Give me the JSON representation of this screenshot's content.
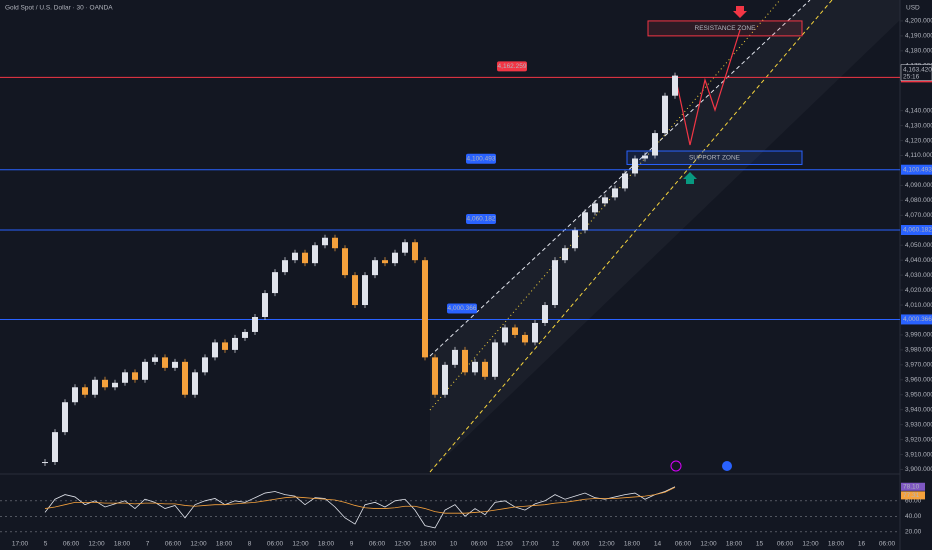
{
  "header": {
    "title": "Gold Spot / U.S. Dollar · 30 · OANDA",
    "currency": "USD"
  },
  "chart_data": {
    "type": "candlestick",
    "closes": [
      3905,
      3925,
      3945,
      3955,
      3950,
      3960,
      3955,
      3958,
      3965,
      3960,
      3972,
      3975,
      3968,
      3972,
      3950,
      3965,
      3975,
      3985,
      3980,
      3988,
      3992,
      4002,
      4018,
      4032,
      4040,
      4045,
      4038,
      4050,
      4055,
      4048,
      4030,
      4010,
      4030,
      4040,
      4038,
      4045,
      4052,
      4040,
      3975,
      3950,
      3970,
      3980,
      3965,
      3972,
      3962,
      3985,
      3995,
      3990,
      3985,
      3998,
      4010,
      4040,
      4048,
      4060,
      4072,
      4078,
      4082,
      4088,
      4098,
      4108,
      4110,
      4125,
      4150,
      4163.42
    ],
    "up_color": "#e0e3eb",
    "down_color": "#f5a13c",
    "ylim": [
      3897,
      4214
    ],
    "yticks": [
      {
        "value": 3900,
        "label": "3,900.000"
      },
      {
        "value": 3910,
        "label": "3,910.000"
      },
      {
        "value": 3920,
        "label": "3,920.000"
      },
      {
        "value": 3930,
        "label": "3,930.000"
      },
      {
        "value": 3940,
        "label": "3,940.000"
      },
      {
        "value": 3950,
        "label": "3,950.000"
      },
      {
        "value": 3960,
        "label": "3,960.000"
      },
      {
        "value": 3970,
        "label": "3,970.000"
      },
      {
        "value": 3980,
        "label": "3,980.000"
      },
      {
        "value": 3990,
        "label": "3,990.000"
      },
      {
        "value": 4010,
        "label": "4,010.000"
      },
      {
        "value": 4020,
        "label": "4,020.000"
      },
      {
        "value": 4030,
        "label": "4,030.000"
      },
      {
        "value": 4040,
        "label": "4,040.000"
      },
      {
        "value": 4050,
        "label": "4,050.000"
      },
      {
        "value": 4070,
        "label": "4,070.000"
      },
      {
        "value": 4080,
        "label": "4,080.000"
      },
      {
        "value": 4090,
        "label": "4,090.000"
      },
      {
        "value": 4110,
        "label": "4,110.000"
      },
      {
        "value": 4120,
        "label": "4,120.000"
      },
      {
        "value": 4130,
        "label": "4,130.000"
      },
      {
        "value": 4140,
        "label": "4,140.000"
      },
      {
        "value": 4170,
        "label": "4,170.000"
      },
      {
        "value": 4180,
        "label": "4,180.000"
      },
      {
        "value": 4190,
        "label": "4,190.000"
      },
      {
        "value": 4200,
        "label": "4,200.000"
      }
    ],
    "levels": [
      {
        "value": 4162.259,
        "label": "4,162.259",
        "color": "#f23645"
      },
      {
        "value": 4100.493,
        "label": "4,100.493",
        "color": "#2962ff"
      },
      {
        "value": 4060.182,
        "label": "4,060.182",
        "color": "#2962ff"
      },
      {
        "value": 4000.366,
        "label": "4,000.366",
        "color": "#2962ff"
      }
    ],
    "zones": [
      {
        "label": "RESISTANCE ZONE",
        "range": [
          4190,
          4200
        ],
        "color": "#f23645"
      },
      {
        "label": "SUPPORT ZONE",
        "range": [
          4104,
          4113
        ],
        "color": "#2962ff"
      }
    ],
    "last_price": {
      "value": 4163.42,
      "label": "4,163.420",
      "countdown": "25:16"
    },
    "xlabels": [
      "17:00",
      "5",
      "06:00",
      "12:00",
      "18:00",
      "7",
      "06:00",
      "12:00",
      "18:00",
      "8",
      "06:00",
      "12:00",
      "18:00",
      "9",
      "06:00",
      "12:00",
      "18:00",
      "10",
      "06:00",
      "12:00",
      "17:00",
      "12",
      "06:00",
      "12:00",
      "18:00",
      "14",
      "06:00",
      "12:00",
      "18:00",
      "15",
      "06:00",
      "12:00",
      "18:00",
      "16",
      "06:00"
    ]
  },
  "rsi": {
    "ylim": [
      12,
      92
    ],
    "yticks": [
      {
        "value": 60,
        "label": "60.00"
      },
      {
        "value": 40,
        "label": "40.00"
      },
      {
        "value": 20,
        "label": "20.00"
      }
    ],
    "values": [
      45,
      62,
      68,
      65,
      55,
      60,
      52,
      56,
      60,
      50,
      62,
      58,
      50,
      54,
      38,
      55,
      60,
      63,
      55,
      60,
      58,
      64,
      70,
      72,
      68,
      66,
      55,
      64,
      63,
      52,
      38,
      30,
      55,
      58,
      52,
      60,
      62,
      48,
      28,
      25,
      48,
      55,
      40,
      50,
      42,
      58,
      60,
      52,
      48,
      56,
      60,
      68,
      62,
      66,
      70,
      64,
      62,
      65,
      68,
      70,
      62,
      68,
      72,
      78.1
    ],
    "ma": [
      50,
      52,
      55,
      58,
      58,
      58,
      57,
      57,
      57,
      56,
      57,
      57,
      56,
      56,
      54,
      53,
      54,
      55,
      55,
      56,
      57,
      58,
      60,
      62,
      64,
      65,
      64,
      63,
      62,
      61,
      58,
      54,
      51,
      50,
      50,
      51,
      53,
      53,
      50,
      46,
      44,
      44,
      44,
      45,
      46,
      48,
      50,
      52,
      53,
      54,
      55,
      57,
      58,
      60,
      62,
      63,
      63,
      63,
      64,
      65,
      66,
      68,
      71,
      77.31
    ],
    "last_labels": [
      {
        "value": 78.1,
        "label": "78.10",
        "color": "#7e57c2"
      },
      {
        "value": 77.31,
        "label": "77.31",
        "color": "#f5a13c"
      }
    ]
  }
}
